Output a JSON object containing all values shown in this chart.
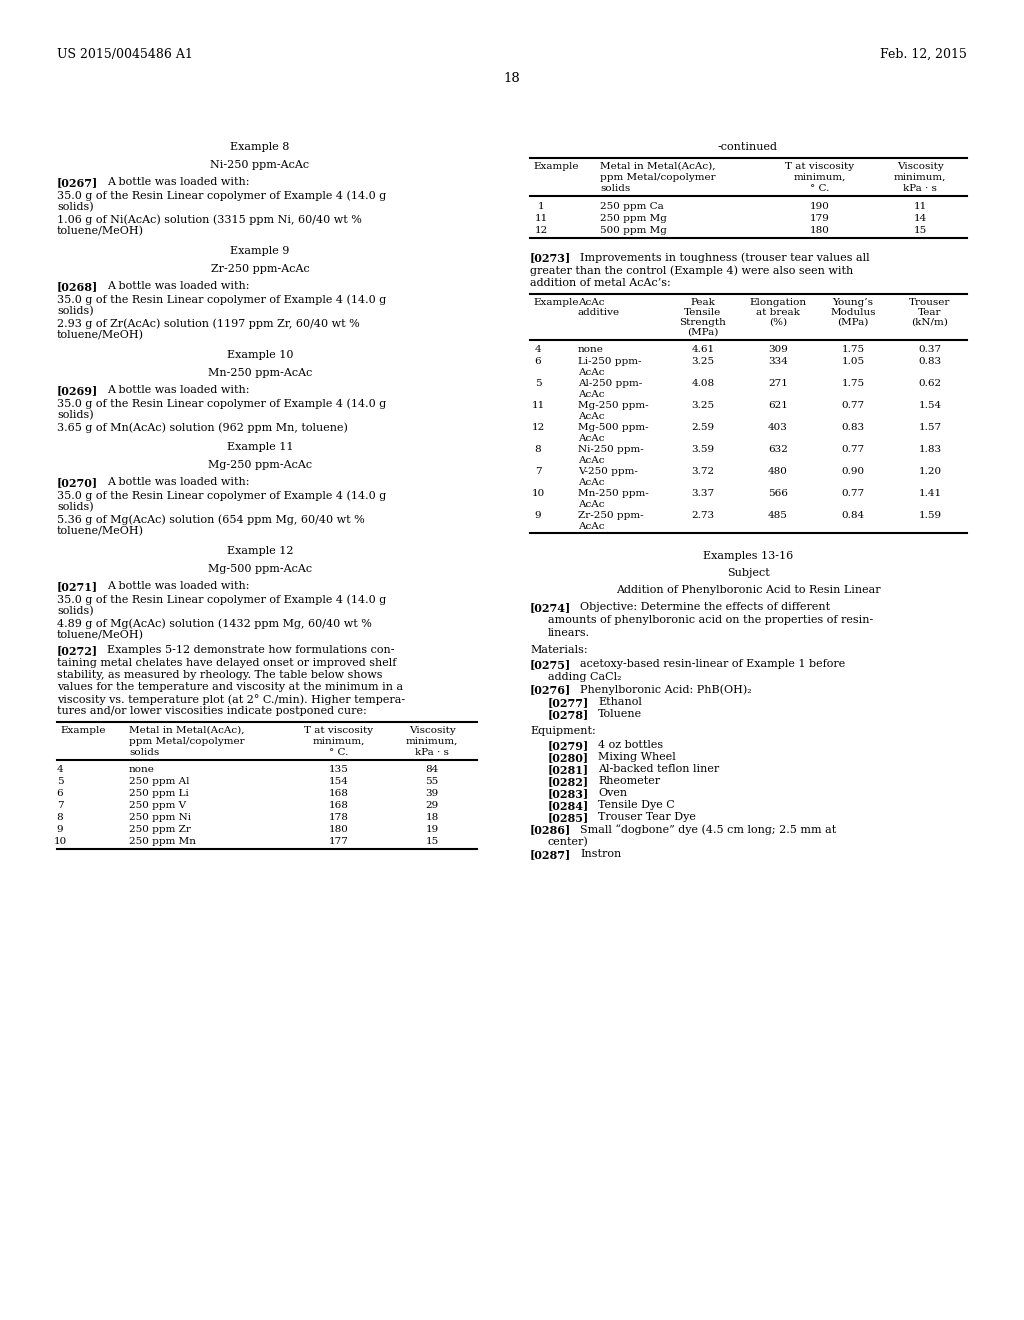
{
  "patent_number": "US 2015/0045486 A1",
  "date": "Feb. 12, 2015",
  "page_number": "18",
  "table1_rows": [
    [
      "4",
      "none",
      "135",
      "84"
    ],
    [
      "5",
      "250 ppm Al",
      "154",
      "55"
    ],
    [
      "6",
      "250 ppm Li",
      "168",
      "39"
    ],
    [
      "7",
      "250 ppm V",
      "168",
      "29"
    ],
    [
      "8",
      "250 ppm Ni",
      "178",
      "18"
    ],
    [
      "9",
      "250 ppm Zr",
      "180",
      "19"
    ],
    [
      "10",
      "250 ppm Mn",
      "177",
      "15"
    ]
  ],
  "table2_rows": [
    [
      "1",
      "250 ppm Ca",
      "190",
      "11"
    ],
    [
      "11",
      "250 ppm Mg",
      "179",
      "14"
    ],
    [
      "12",
      "500 ppm Mg",
      "180",
      "15"
    ]
  ],
  "table3_rows": [
    [
      "4",
      "none",
      "4.61",
      "309",
      "1.75",
      "0.37"
    ],
    [
      "6",
      "Li-250 ppm-\nAcAc",
      "3.25",
      "334",
      "1.05",
      "0.83"
    ],
    [
      "5",
      "Al-250 ppm-\nAcAc",
      "4.08",
      "271",
      "1.75",
      "0.62"
    ],
    [
      "11",
      "Mg-250 ppm-\nAcAc",
      "3.25",
      "621",
      "0.77",
      "1.54"
    ],
    [
      "12",
      "Mg-500 ppm-\nAcAc",
      "2.59",
      "403",
      "0.83",
      "1.57"
    ],
    [
      "8",
      "Ni-250 ppm-\nAcAc",
      "3.59",
      "632",
      "0.77",
      "1.83"
    ],
    [
      "7",
      "V-250 ppm-\nAcAc",
      "3.72",
      "480",
      "0.90",
      "1.20"
    ],
    [
      "10",
      "Mn-250 ppm-\nAcAc",
      "3.37",
      "566",
      "0.77",
      "1.41"
    ],
    [
      "9",
      "Zr-250 ppm-\nAcAc",
      "2.73",
      "485",
      "0.84",
      "1.59"
    ]
  ]
}
